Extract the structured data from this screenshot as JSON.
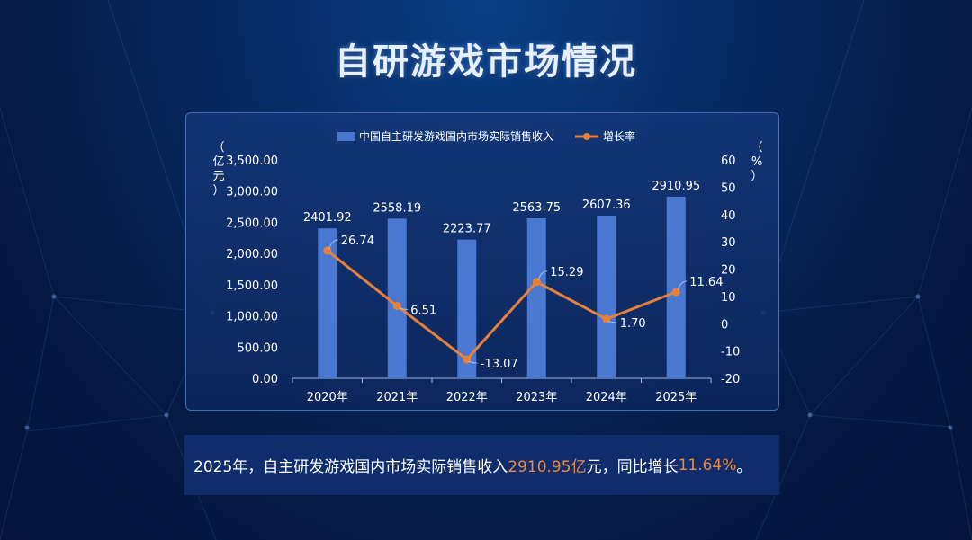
{
  "page": {
    "title": "自研游戏市场情况"
  },
  "summary": {
    "prefix": "2025年，自主研发游戏国内市场实际销售收入",
    "value1": "2910.95亿",
    "middle": "元，同比增长",
    "value2": "11.64%",
    "suffix": "。"
  },
  "chart_data": {
    "type": "bar+line",
    "categories": [
      "2020年",
      "2021年",
      "2022年",
      "2023年",
      "2024年",
      "2025年"
    ],
    "series": [
      {
        "name": "中国自主研发游戏国内市场实际销售收入",
        "type": "bar",
        "axis": "left",
        "values": [
          2401.92,
          2558.19,
          2223.77,
          2563.75,
          2607.36,
          2910.95
        ],
        "labels": [
          "2401.92",
          "2558.19",
          "2223.77",
          "2563.75",
          "2607.36",
          "2910.95"
        ],
        "color": "#4a78d0"
      },
      {
        "name": "增长率",
        "type": "line",
        "axis": "right",
        "values": [
          26.74,
          6.51,
          -13.07,
          15.29,
          1.7,
          11.64
        ],
        "labels": [
          "26.74",
          "6.51",
          "-13.07",
          "15.29",
          "1.70",
          "11.64"
        ],
        "color": "#e8803a"
      }
    ],
    "y_left": {
      "label": "（亿元）",
      "ylim": [
        0,
        3500
      ],
      "ticks": [
        "0.00",
        "500.00",
        "1,000.00",
        "1,500.00",
        "2,000.00",
        "2,500.00",
        "3,000.00",
        "3,500.00"
      ],
      "tick_values": [
        0,
        500,
        1000,
        1500,
        2000,
        2500,
        3000,
        3500
      ]
    },
    "y_right": {
      "label": "（%）",
      "ylim": [
        -20,
        60
      ],
      "ticks": [
        "-20",
        "-10",
        "0",
        "10",
        "20",
        "30",
        "40",
        "50",
        "60"
      ],
      "tick_values": [
        -20,
        -10,
        0,
        10,
        20,
        30,
        40,
        50,
        60
      ]
    },
    "legend_position": "top-center",
    "grid": false
  }
}
